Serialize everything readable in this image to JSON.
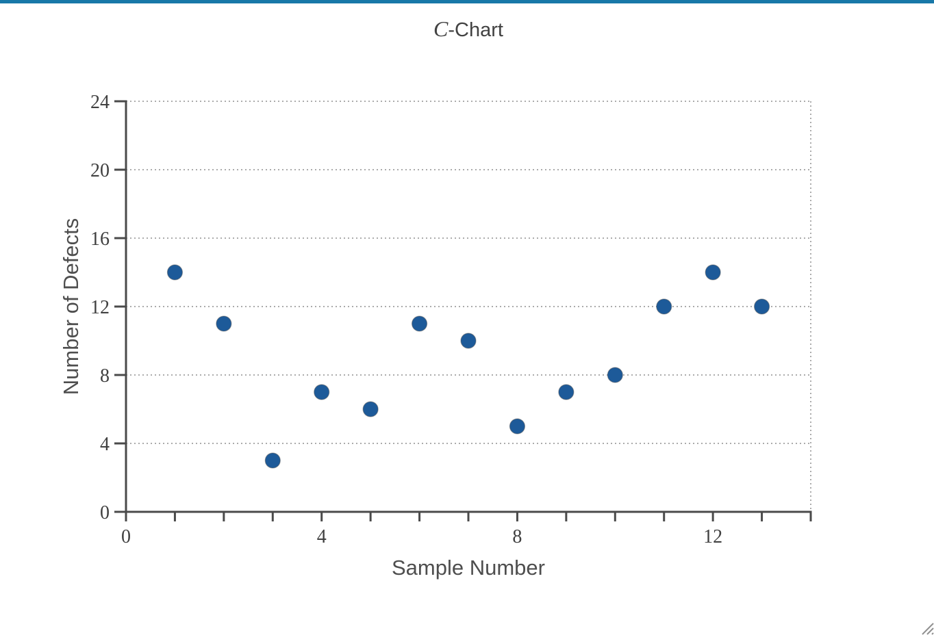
{
  "top_bar": {
    "color": "#1878a8"
  },
  "chart_data": {
    "type": "scatter",
    "title": "C-Chart",
    "title_main": "C",
    "title_suffix": "-Chart",
    "xlabel": "Sample Number",
    "ylabel": "Number of Defects",
    "x": [
      1,
      2,
      3,
      4,
      5,
      6,
      7,
      8,
      9,
      10,
      11,
      12,
      13
    ],
    "y": [
      14,
      11,
      3,
      7,
      6,
      11,
      10,
      5,
      7,
      8,
      12,
      14,
      12
    ],
    "xlim": [
      0,
      14
    ],
    "ylim": [
      0,
      24
    ],
    "x_tick_step": 1,
    "x_label_ticks": [
      0,
      4,
      8,
      12
    ],
    "y_ticks": [
      0,
      4,
      8,
      12,
      16,
      20,
      24
    ],
    "grid": "horizontal-dotted",
    "right_border": "dotted",
    "legend": "none",
    "point_radius_px": 11,
    "colors": {
      "point": "#1d5a99",
      "point_outline": "#4d4d4d",
      "axis": "#4a4a4a",
      "grid": "#ababab",
      "tick_text": "#404040",
      "title_text": "#424242",
      "axis_label_text": "#4e4e4e"
    }
  },
  "window": {
    "resize_handle_icon": "diagonal-grip",
    "resize_handle_color": "#909090"
  }
}
